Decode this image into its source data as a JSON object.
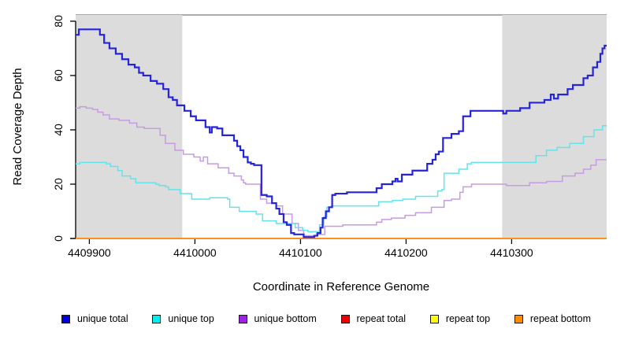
{
  "chart_data": {
    "type": "line",
    "subtype": "step",
    "title": "",
    "xlabel": "Coordinate in Reference Genome",
    "ylabel": "Read Coverage Depth",
    "x_range": [
      4409887,
      4410390
    ],
    "y_range": [
      0,
      82.3
    ],
    "grid": false,
    "x_ticks": {
      "values": [
        4409900,
        4410000,
        4410100,
        4410200,
        4410300
      ],
      "labels": [
        "4409900",
        "4410000",
        "4410100",
        "4410200",
        "4410300"
      ]
    },
    "y_ticks": {
      "values": [
        0,
        20,
        40,
        60,
        80
      ],
      "labels": [
        "0",
        "20",
        "40",
        "60",
        "80"
      ]
    },
    "shaded_regions": [
      {
        "x0": 4409887,
        "x1": 4409988,
        "color": "#dcdcdc"
      },
      {
        "x0": 4410291,
        "x1": 4410390,
        "color": "#dcdcdc"
      }
    ],
    "visibility_note": "repeat total, repeat top and repeat bottom all lie flat at depth 0 along the x-axis; only the orange repeat bottom line is visible on top",
    "legend": {
      "position": "bottom",
      "items": [
        {
          "label": "unique total",
          "color": "#0000e0"
        },
        {
          "label": "unique top",
          "color": "#00eeee"
        },
        {
          "label": "unique bottom",
          "color": "#a020f0"
        },
        {
          "label": "repeat total",
          "color": "#ee0000"
        },
        {
          "label": "repeat top",
          "color": "#ffff00"
        },
        {
          "label": "repeat bottom",
          "color": "#ff8c00"
        }
      ]
    },
    "series": [
      {
        "name": "unique total",
        "stroke": "#2424db",
        "points": [
          [
            4409887,
            75
          ],
          [
            4409890,
            77
          ],
          [
            4409910,
            75
          ],
          [
            4409914,
            72
          ],
          [
            4409919,
            70
          ],
          [
            4409925,
            68
          ],
          [
            4409931,
            66
          ],
          [
            4409937,
            64
          ],
          [
            4409943,
            63
          ],
          [
            4409947,
            61
          ],
          [
            4409951,
            60
          ],
          [
            4409958,
            58
          ],
          [
            4409964,
            57
          ],
          [
            4409970,
            55
          ],
          [
            4409975,
            52
          ],
          [
            4409979,
            51
          ],
          [
            4409983,
            49
          ],
          [
            4409990,
            47
          ],
          [
            4409996,
            45
          ],
          [
            4410001,
            43.5
          ],
          [
            4410010,
            41
          ],
          [
            4410014,
            39
          ],
          [
            4410016,
            41
          ],
          [
            4410021,
            40.5
          ],
          [
            4410026,
            38
          ],
          [
            4410037,
            36
          ],
          [
            4410040,
            34
          ],
          [
            4410043,
            32.5
          ],
          [
            4410046,
            30
          ],
          [
            4410050,
            28
          ],
          [
            4410053,
            27.5
          ],
          [
            4410056,
            27
          ],
          [
            4410063,
            16
          ],
          [
            4410068,
            15.5
          ],
          [
            4410073,
            13
          ],
          [
            4410077,
            11
          ],
          [
            4410080,
            9
          ],
          [
            4410084,
            6
          ],
          [
            4410087,
            5
          ],
          [
            4410091,
            2
          ],
          [
            4410094,
            1.5
          ],
          [
            4410103,
            0.5
          ],
          [
            4410113,
            1
          ],
          [
            4410116,
            2
          ],
          [
            4410119,
            4
          ],
          [
            4410121,
            7.5
          ],
          [
            4410124,
            10
          ],
          [
            4410127,
            11.5
          ],
          [
            4410130,
            16
          ],
          [
            4410133,
            16.5
          ],
          [
            4410144,
            17
          ],
          [
            4410172,
            18.5
          ],
          [
            4410177,
            20
          ],
          [
            4410187,
            21
          ],
          [
            4410190,
            22
          ],
          [
            4410192,
            21
          ],
          [
            4410196,
            23.5
          ],
          [
            4410206,
            25
          ],
          [
            4410220,
            27.5
          ],
          [
            4410225,
            29
          ],
          [
            4410228,
            31
          ],
          [
            4410231,
            32
          ],
          [
            4410235,
            37
          ],
          [
            4410243,
            38.5
          ],
          [
            4410250,
            39.5
          ],
          [
            4410254,
            45
          ],
          [
            4410261,
            47
          ],
          [
            4410292,
            46
          ],
          [
            4410295,
            47
          ],
          [
            4410308,
            48
          ],
          [
            4410317,
            50
          ],
          [
            4410331,
            51
          ],
          [
            4410337,
            53
          ],
          [
            4410340,
            51.5
          ],
          [
            4410344,
            53
          ],
          [
            4410353,
            55
          ],
          [
            4410358,
            56.5
          ],
          [
            4410368,
            59
          ],
          [
            4410372,
            60
          ],
          [
            4410377,
            63
          ],
          [
            4410381,
            65
          ],
          [
            4410384,
            68
          ],
          [
            4410386,
            70
          ],
          [
            4410388,
            71
          ]
        ]
      },
      {
        "name": "unique top",
        "stroke": "#63e3ea",
        "points": [
          [
            4409887,
            27.5
          ],
          [
            4409891,
            28
          ],
          [
            4409916,
            27.5
          ],
          [
            4409920,
            26.5
          ],
          [
            4409927,
            25
          ],
          [
            4409931,
            23
          ],
          [
            4409939,
            22
          ],
          [
            4409944,
            20.5
          ],
          [
            4409963,
            20
          ],
          [
            4409966,
            19.5
          ],
          [
            4409972,
            19
          ],
          [
            4409975,
            18
          ],
          [
            4409986,
            16.5
          ],
          [
            4409997,
            14.5
          ],
          [
            4410014,
            15
          ],
          [
            4410031,
            14.5
          ],
          [
            4410033,
            11.5
          ],
          [
            4410042,
            10
          ],
          [
            4410058,
            9
          ],
          [
            4410064,
            6.5
          ],
          [
            4410077,
            5.5
          ],
          [
            4410095,
            4
          ],
          [
            4410102,
            3
          ],
          [
            4410107,
            2.5
          ],
          [
            4410118,
            5
          ],
          [
            4410122,
            8
          ],
          [
            4410125,
            11.5
          ],
          [
            4410129,
            12
          ],
          [
            4410174,
            13.5
          ],
          [
            4410187,
            14
          ],
          [
            4410197,
            14.5
          ],
          [
            4410209,
            15.5
          ],
          [
            4410230,
            17.5
          ],
          [
            4410234,
            18
          ],
          [
            4410236,
            24
          ],
          [
            4410250,
            25.5
          ],
          [
            4410258,
            27.5
          ],
          [
            4410262,
            28
          ],
          [
            4410323,
            30.5
          ],
          [
            4410333,
            32.5
          ],
          [
            4410343,
            33.5
          ],
          [
            4410355,
            35
          ],
          [
            4410368,
            37.5
          ],
          [
            4410378,
            40
          ],
          [
            4410386,
            41.5
          ]
        ]
      },
      {
        "name": "unique bottom",
        "stroke": "#c79be3",
        "points": [
          [
            4409887,
            48
          ],
          [
            4409891,
            48.5
          ],
          [
            4409897,
            48
          ],
          [
            4409903,
            47.5
          ],
          [
            4409908,
            46.5
          ],
          [
            4409913,
            45.5
          ],
          [
            4409919,
            44
          ],
          [
            4409928,
            43.5
          ],
          [
            4409938,
            42.5
          ],
          [
            4409945,
            41
          ],
          [
            4409952,
            40.5
          ],
          [
            4409967,
            38
          ],
          [
            4409972,
            35
          ],
          [
            4409981,
            32.5
          ],
          [
            4409989,
            31
          ],
          [
            4409999,
            30
          ],
          [
            4410005,
            28.5
          ],
          [
            4410008,
            30
          ],
          [
            4410012,
            27.5
          ],
          [
            4410022,
            26
          ],
          [
            4410032,
            24
          ],
          [
            4410037,
            23
          ],
          [
            4410044,
            21.5
          ],
          [
            4410046,
            20.5
          ],
          [
            4410048,
            20
          ],
          [
            4410062,
            14.5
          ],
          [
            4410068,
            13
          ],
          [
            4410077,
            12
          ],
          [
            4410083,
            9
          ],
          [
            4410092,
            5.5
          ],
          [
            4410098,
            3
          ],
          [
            4410103,
            1
          ],
          [
            4410115,
            1.5
          ],
          [
            4410123,
            4.5
          ],
          [
            4410140,
            5
          ],
          [
            4410172,
            6
          ],
          [
            4410177,
            7
          ],
          [
            4410186,
            7.5
          ],
          [
            4410199,
            8.5
          ],
          [
            4410209,
            9.5
          ],
          [
            4410224,
            11.5
          ],
          [
            4410236,
            14
          ],
          [
            4410243,
            14.5
          ],
          [
            4410251,
            17
          ],
          [
            4410254,
            19
          ],
          [
            4410262,
            20
          ],
          [
            4410295,
            19.5
          ],
          [
            4410317,
            20.5
          ],
          [
            4410333,
            21
          ],
          [
            4410348,
            23
          ],
          [
            4410360,
            24
          ],
          [
            4410368,
            25.5
          ],
          [
            4410375,
            27
          ],
          [
            4410380,
            29
          ]
        ]
      },
      {
        "name": "repeat total",
        "stroke": "#ee0000",
        "points": [
          [
            4409887,
            0
          ]
        ]
      },
      {
        "name": "repeat top",
        "stroke": "#ffff00",
        "points": [
          [
            4409887,
            0
          ]
        ]
      },
      {
        "name": "repeat bottom",
        "stroke": "#ff8c1a",
        "points": [
          [
            4409887,
            0
          ]
        ]
      }
    ]
  }
}
